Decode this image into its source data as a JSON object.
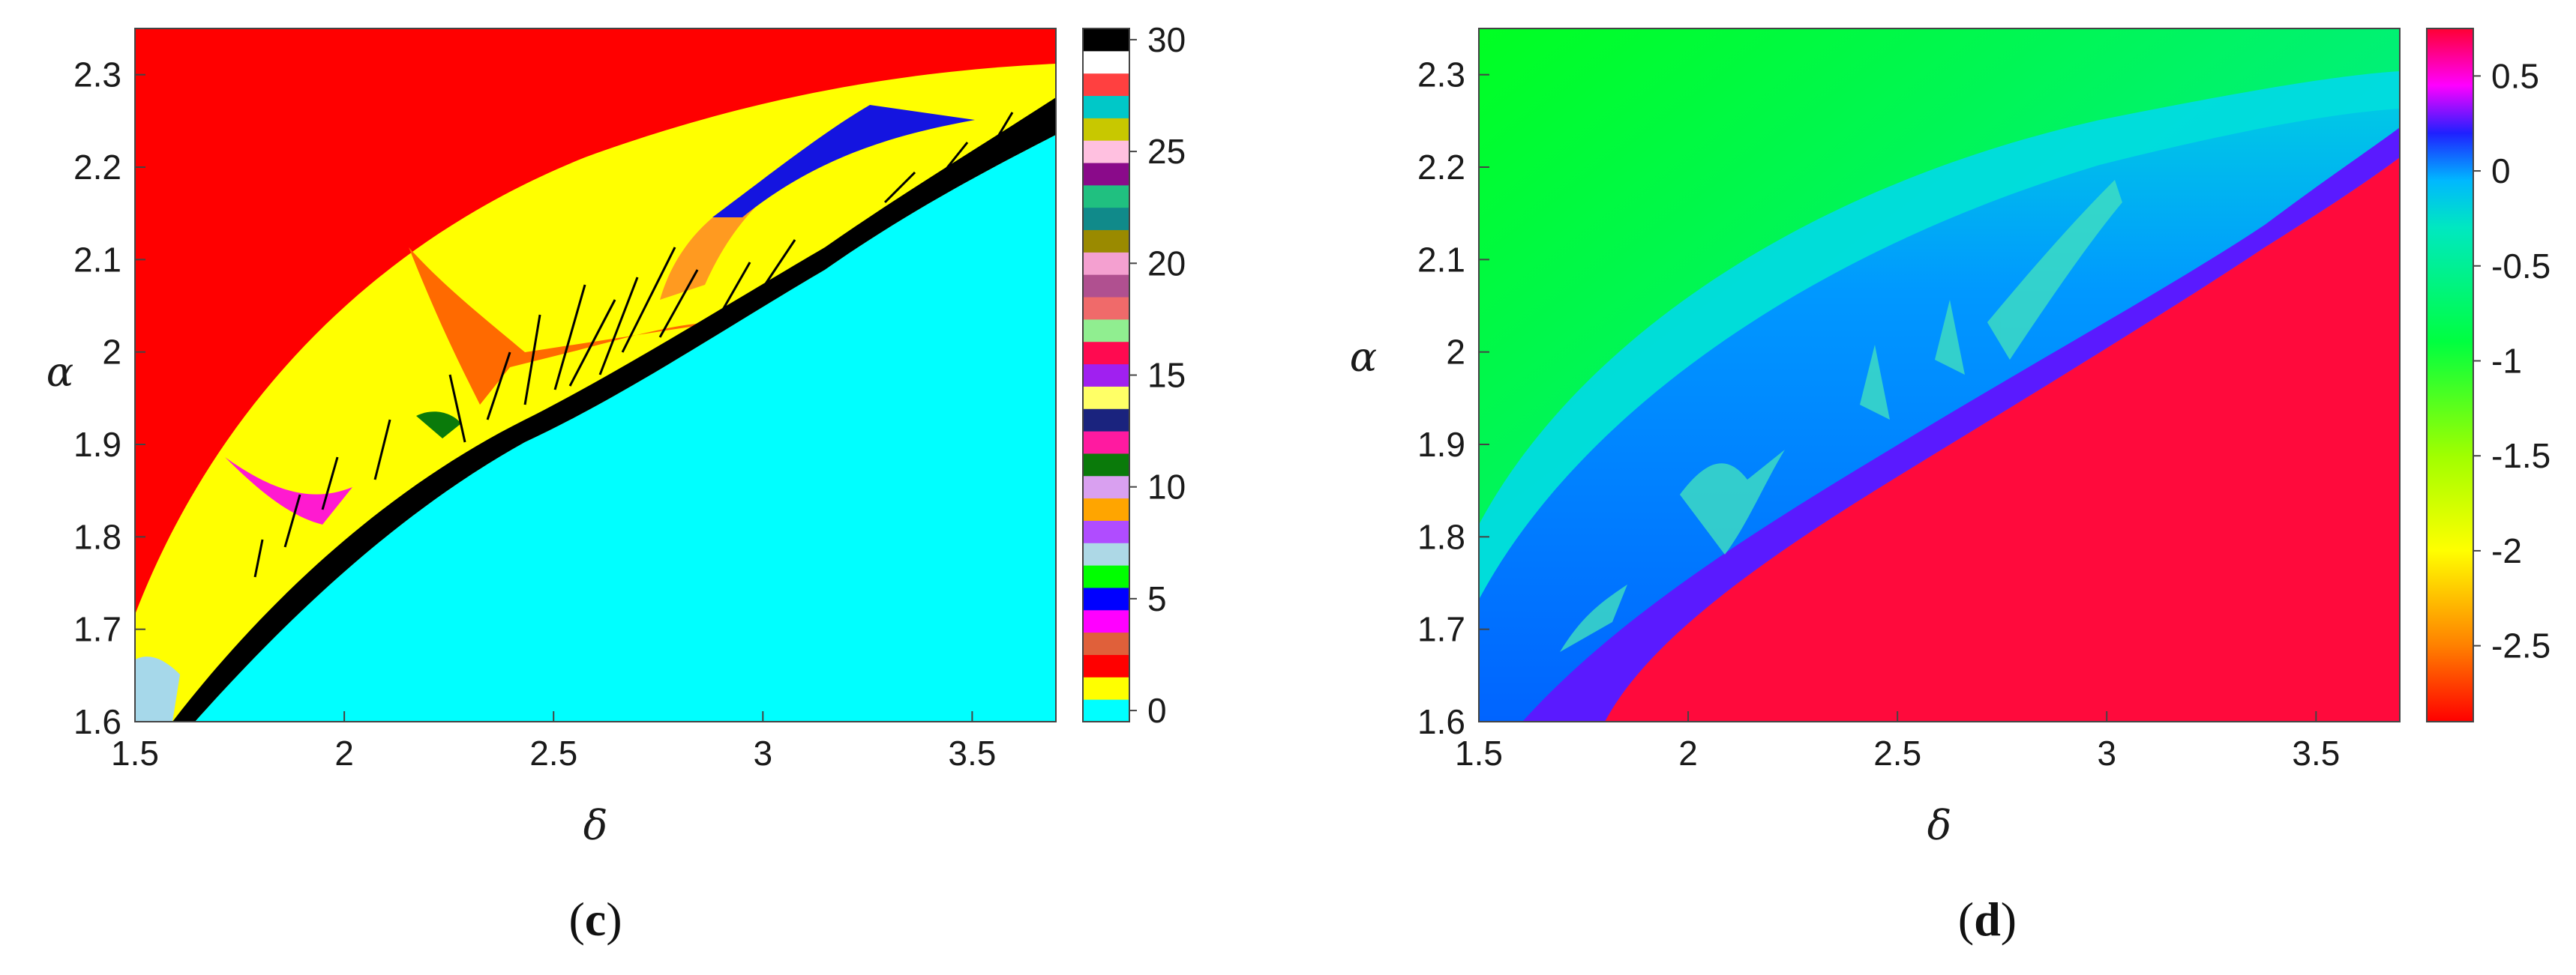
{
  "chart_data": [
    {
      "type": "heatmap",
      "panel_label_open": "(",
      "panel_label_letter": "c",
      "panel_label_close": ")",
      "xlabel": "δ",
      "ylabel": "α",
      "xlim": [
        1.5,
        3.7
      ],
      "ylim": [
        1.6,
        2.35
      ],
      "x_ticks": [
        "1.5",
        "2",
        "2.5",
        "3",
        "3.5"
      ],
      "x_tick_values": [
        1.5,
        2.0,
        2.5,
        3.0,
        3.5
      ],
      "y_ticks": [
        "1.6",
        "1.7",
        "1.8",
        "1.9",
        "2",
        "2.1",
        "2.2",
        "2.3"
      ],
      "y_tick_values": [
        1.6,
        1.7,
        1.8,
        1.9,
        2.0,
        2.1,
        2.2,
        2.3
      ],
      "colorbar": {
        "range": [
          0,
          30
        ],
        "ticks": [
          "0",
          "5",
          "10",
          "15",
          "20",
          "25",
          "30"
        ],
        "tick_values": [
          0,
          5,
          10,
          15,
          20,
          25,
          30
        ],
        "discrete_colors": [
          "#00ffff",
          "#ffff00",
          "#ff0000",
          "#e0603a",
          "#ff00ff",
          "#0000ff",
          "#00ff00",
          "#add8e6",
          "#b04cff",
          "#ffa500",
          "#d9a0f0",
          "#0a7a0a",
          "#ff1aa0",
          "#1a237e",
          "#ffff66",
          "#a020f0",
          "#ff0a50",
          "#90ee90",
          "#f06a6a",
          "#b05090",
          "#f4a0d0",
          "#9a8a00",
          "#108a8a",
          "#20c080",
          "#8a0a8a",
          "#ffc0e0",
          "#c8c800",
          "#00c8c8",
          "#ff4040",
          "#ffffff",
          "#000000"
        ]
      },
      "regions": [
        {
          "name": "upper",
          "color": "#ff0000"
        },
        {
          "name": "middle-band",
          "color": "#ffff00"
        },
        {
          "name": "lower",
          "color": "#00ffff"
        },
        {
          "name": "boundary-layer",
          "color": "#000000"
        },
        {
          "name": "orange-wedge",
          "color": "#ff6a00"
        },
        {
          "name": "blue-wedge",
          "color": "#1414e0"
        },
        {
          "name": "magenta-wedge",
          "color": "#ff1ad0"
        }
      ]
    },
    {
      "type": "heatmap",
      "panel_label_open": "(",
      "panel_label_letter": "d",
      "panel_label_close": ")",
      "xlabel": "δ",
      "ylabel": "α",
      "xlim": [
        1.5,
        3.7
      ],
      "ylim": [
        1.6,
        2.35
      ],
      "x_ticks": [
        "1.5",
        "2",
        "2.5",
        "3",
        "3.5"
      ],
      "x_tick_values": [
        1.5,
        2.0,
        2.5,
        3.0,
        3.5
      ],
      "y_ticks": [
        "1.6",
        "1.7",
        "1.8",
        "1.9",
        "2",
        "2.1",
        "2.2",
        "2.3"
      ],
      "y_tick_values": [
        1.6,
        1.7,
        1.8,
        1.9,
        2.0,
        2.1,
        2.2,
        2.3
      ],
      "colorbar": {
        "range": [
          -2.9,
          0.75
        ],
        "ticks": [
          "0.5",
          "0",
          "-0.5",
          "-1",
          "-1.5",
          "-2",
          "-2.5"
        ],
        "tick_values": [
          0.5,
          0,
          -0.5,
          -1,
          -1.5,
          -2,
          -2.5
        ],
        "gradient_stops": [
          {
            "value": 0.75,
            "color": "#ff0033"
          },
          {
            "value": 0.45,
            "color": "#ff00ff"
          },
          {
            "value": 0.2,
            "color": "#2020ff"
          },
          {
            "value": -0.05,
            "color": "#00b8ff"
          },
          {
            "value": -0.3,
            "color": "#00e8c0"
          },
          {
            "value": -0.9,
            "color": "#00ff40"
          },
          {
            "value": -1.5,
            "color": "#a0ff00"
          },
          {
            "value": -2.0,
            "color": "#ffff00"
          },
          {
            "value": -2.5,
            "color": "#ff8000"
          },
          {
            "value": -2.9,
            "color": "#ff0000"
          }
        ]
      },
      "regions": [
        {
          "name": "upper",
          "color": "#00ff22"
        },
        {
          "name": "middle-band",
          "color": "#0070ff"
        },
        {
          "name": "boundary-layer",
          "color": "#5a1aff"
        },
        {
          "name": "lower",
          "color": "#ff0a3c"
        }
      ]
    }
  ]
}
